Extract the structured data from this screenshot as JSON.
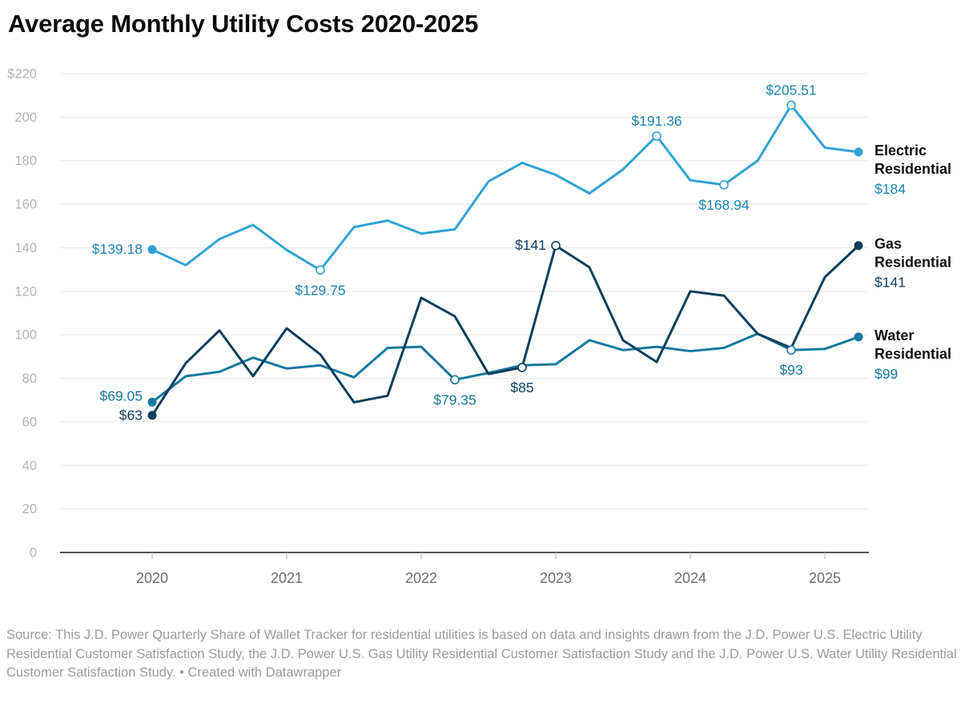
{
  "title": "Average Monthly Utility Costs 2020-2025",
  "source_note": "Source: This J.D. Power Quarterly Share of Wallet Tracker for residential utilities is based on data and insights drawn from the J.D. Power U.S. Electric Utility Residential Customer Satisfaction Study, the J.D. Power U.S. Gas Utility Residential Customer Satisfaction Study and the J.D. Power U.S. Water Utility Residential Customer Satisfaction Study. • Created with Datawrapper",
  "chart_data": {
    "type": "line",
    "x_unit": "quarterly",
    "x_start_year": 2020,
    "x_tick_labels": [
      "2020",
      "2021",
      "2022",
      "2023",
      "2024",
      "2025"
    ],
    "y_tick_labels": [
      "0",
      "20",
      "40",
      "60",
      "80",
      "100",
      "120",
      "140",
      "160",
      "180",
      "200",
      "$220"
    ],
    "ylim": [
      0,
      220
    ],
    "grid": "horizontal",
    "legend_position": "right-of-line-ends",
    "series": [
      {
        "name": "Electric Residential",
        "name_lines": [
          "Electric",
          "Residential"
        ],
        "color": "#2fa3d6",
        "label_color": "#1a85b2",
        "end_label": "$184",
        "values": [
          139.18,
          132,
          144,
          150.5,
          139,
          129.75,
          149.5,
          152.5,
          146.5,
          148.5,
          170.5,
          179,
          173.5,
          165,
          176,
          191.36,
          171,
          168.94,
          180,
          205.51,
          186,
          184
        ],
        "point_labels": [
          {
            "index": 0,
            "text": "$139.18",
            "placement": "left"
          },
          {
            "index": 5,
            "text": "$129.75",
            "placement": "below"
          },
          {
            "index": 15,
            "text": "$191.36",
            "placement": "above"
          },
          {
            "index": 17,
            "text": "$168.94",
            "placement": "below"
          },
          {
            "index": 19,
            "text": "$205.51",
            "placement": "above"
          }
        ],
        "open_markers": [
          5,
          15,
          17,
          19
        ],
        "filled_markers": [
          0,
          21
        ]
      },
      {
        "name": "Gas Residential",
        "name_lines": [
          "Gas",
          "Residential"
        ],
        "color": "#0d3f5e",
        "label_color": "#0d3f5e",
        "end_label": "$141",
        "values": [
          63,
          87,
          102,
          81,
          103,
          91,
          69,
          72,
          117,
          108.5,
          82,
          85,
          141,
          131,
          97.5,
          87.5,
          120,
          118,
          100.5,
          94,
          126.5,
          141
        ],
        "point_labels": [
          {
            "index": 0,
            "text": "$63",
            "placement": "left"
          },
          {
            "index": 11,
            "text": "$85",
            "placement": "below"
          },
          {
            "index": 12,
            "text": "$141",
            "placement": "left"
          }
        ],
        "open_markers": [
          11,
          12
        ],
        "filled_markers": [
          0,
          21
        ]
      },
      {
        "name": "Water Residential",
        "name_lines": [
          "Water",
          "Residential"
        ],
        "color": "#16789f",
        "label_color": "#16789f",
        "end_label": "$99",
        "values": [
          69.05,
          81,
          83,
          89.5,
          84.5,
          86,
          80.5,
          94,
          94.5,
          79.35,
          82.5,
          86,
          86.5,
          97.5,
          93,
          94.5,
          92.5,
          94,
          100.5,
          93,
          93.5,
          99
        ],
        "point_labels": [
          {
            "index": 0,
            "text": "$69.05",
            "placement": "left-up"
          },
          {
            "index": 9,
            "text": "$79.35",
            "placement": "below"
          },
          {
            "index": 19,
            "text": "$93",
            "placement": "below"
          }
        ],
        "open_markers": [
          9,
          19
        ],
        "filled_markers": [
          0,
          21
        ]
      }
    ]
  }
}
